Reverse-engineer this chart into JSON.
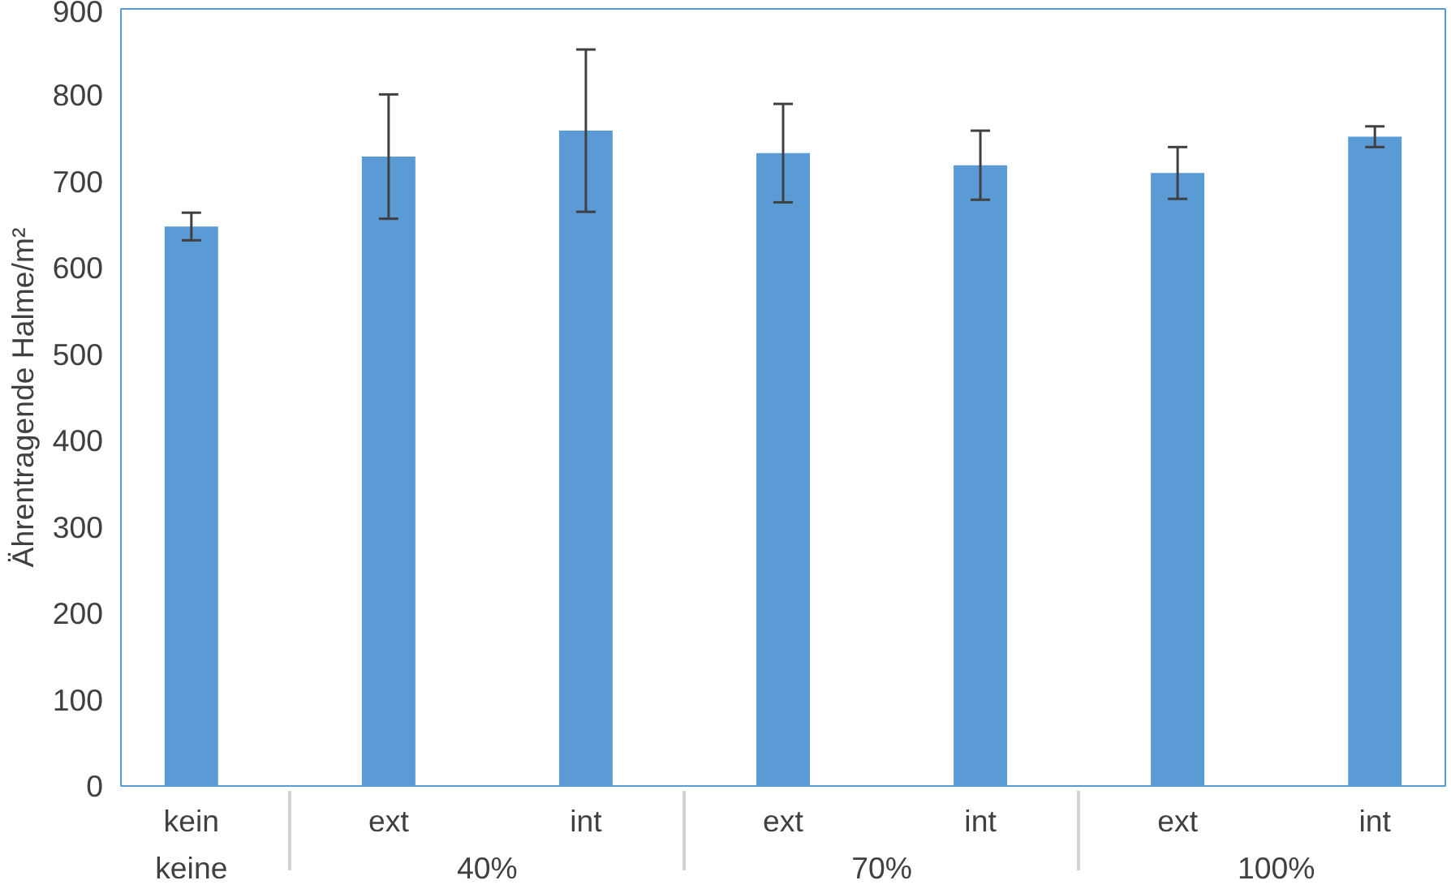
{
  "chart_data": {
    "type": "bar",
    "ylabel": "Ährentragende Halme/m²",
    "categories": [
      "kein",
      "ext",
      "int",
      "ext",
      "int",
      "ext",
      "int"
    ],
    "annotations": [
      "keine",
      "40%",
      "70%",
      "100%"
    ],
    "values": [
      648,
      729,
      759,
      733,
      719,
      710,
      752
    ],
    "errors": [
      16,
      72,
      94,
      57,
      40,
      30,
      12
    ],
    "color": "#5b9bd5",
    "ylim": [
      0,
      900
    ],
    "yticks": [
      0,
      100,
      200,
      300,
      400,
      500,
      600,
      700,
      800,
      900
    ],
    "grid": false
  }
}
